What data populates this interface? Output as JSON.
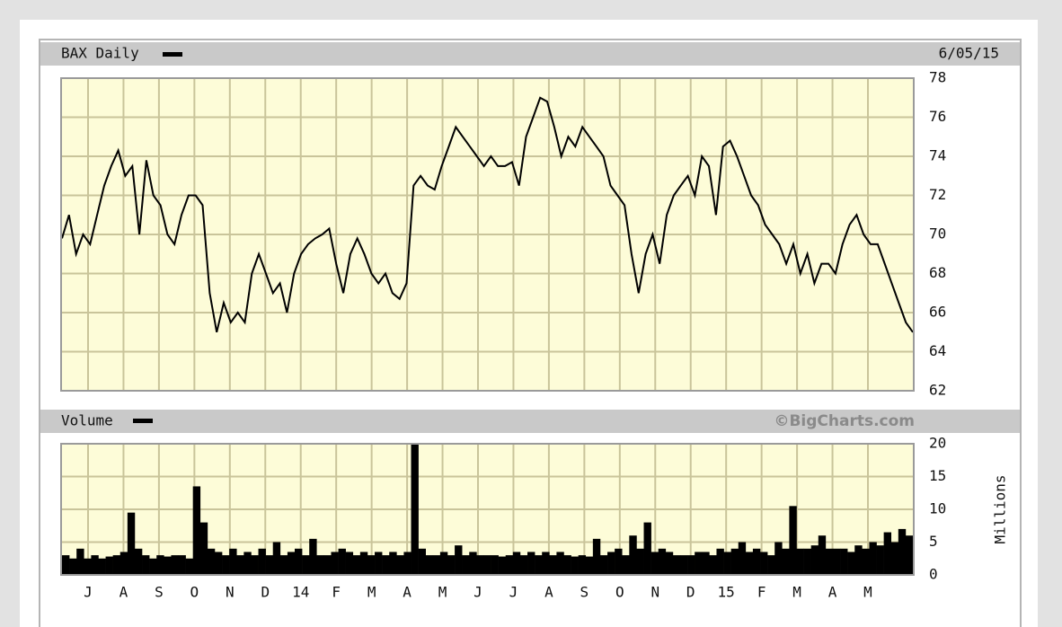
{
  "chart_data": [
    {
      "type": "line",
      "title": "BAX Daily",
      "date": "6/05/15",
      "grid": true,
      "ylim": [
        62,
        78
      ],
      "yticks": [
        62,
        64,
        66,
        68,
        70,
        72,
        74,
        76,
        78
      ],
      "series": [
        {
          "color": "#000000",
          "values": [
            69.8,
            71,
            69,
            70,
            69.5,
            71,
            72.5,
            73.5,
            74.3,
            73,
            73.5,
            70,
            73.8,
            72,
            71.5,
            70,
            69.5,
            71,
            72,
            72,
            71.5,
            67,
            65,
            66.5,
            65.5,
            66,
            65.5,
            68,
            69,
            68,
            67,
            67.5,
            66,
            68,
            69,
            69.5,
            69.8,
            70,
            70.3,
            68.5,
            67,
            69,
            69.8,
            69,
            68,
            67.5,
            68,
            67,
            66.7,
            67.5,
            72.5,
            73,
            72.5,
            72.3,
            73.5,
            74.5,
            75.5,
            75,
            74.5,
            74,
            73.5,
            74,
            73.5,
            73.5,
            73.7,
            72.5,
            75,
            76,
            77,
            76.8,
            75.5,
            74,
            75,
            74.5,
            75.5,
            75,
            74.5,
            74,
            72.5,
            72,
            71.5,
            69,
            67,
            69,
            70,
            68.5,
            71,
            72,
            72.5,
            73,
            72,
            74,
            73.5,
            71,
            74.5,
            74.8,
            74,
            73,
            72,
            71.5,
            70.5,
            70,
            69.5,
            68.5,
            69.5,
            68,
            69,
            67.5,
            68.5,
            68.5,
            68,
            69.5,
            70.5,
            71,
            70,
            69.5,
            69.5,
            68.5,
            67.5,
            66.5,
            65.5,
            65
          ]
        }
      ]
    },
    {
      "type": "bar",
      "title": "Volume",
      "source": "©BigCharts.com",
      "y_label": "Millions",
      "grid": true,
      "ylim": [
        0,
        20
      ],
      "yticks": [
        0,
        5,
        10,
        15,
        20
      ],
      "x_labels": [
        "J",
        "A",
        "S",
        "O",
        "N",
        "D",
        "14",
        "F",
        "M",
        "A",
        "M",
        "J",
        "J",
        "A",
        "S",
        "O",
        "N",
        "D",
        "15",
        "F",
        "M",
        "A",
        "M"
      ],
      "series": [
        {
          "color": "#000000",
          "values": [
            3,
            2.5,
            4,
            2.5,
            3,
            2.5,
            2.8,
            3,
            3.5,
            9.5,
            4,
            3,
            2.5,
            3,
            2.8,
            3,
            3,
            2.5,
            13.5,
            8,
            4,
            3.5,
            3,
            4,
            3,
            3.5,
            3,
            4,
            3,
            5,
            3,
            3.5,
            4,
            3,
            5.5,
            3,
            3,
            3.5,
            4,
            3.5,
            3,
            3.5,
            3,
            3.5,
            3,
            3.5,
            3,
            3.5,
            20,
            4,
            3,
            3,
            3.5,
            3,
            4.5,
            3,
            3.5,
            3,
            3,
            3,
            2.8,
            3,
            3.5,
            3,
            3.5,
            3,
            3.5,
            3,
            3.5,
            3,
            2.8,
            3,
            2.8,
            5.5,
            3,
            3.5,
            4,
            3,
            6,
            4,
            8,
            3.5,
            4,
            3.5,
            3,
            3,
            3,
            3.5,
            3.5,
            3,
            4,
            3.5,
            4,
            5,
            3.5,
            4,
            3.5,
            3,
            5,
            4,
            10.5,
            4,
            4,
            4.5,
            6,
            4,
            4,
            4,
            3.5,
            4.5,
            4,
            5,
            4.5,
            6.5,
            5,
            7,
            6
          ]
        }
      ]
    }
  ]
}
